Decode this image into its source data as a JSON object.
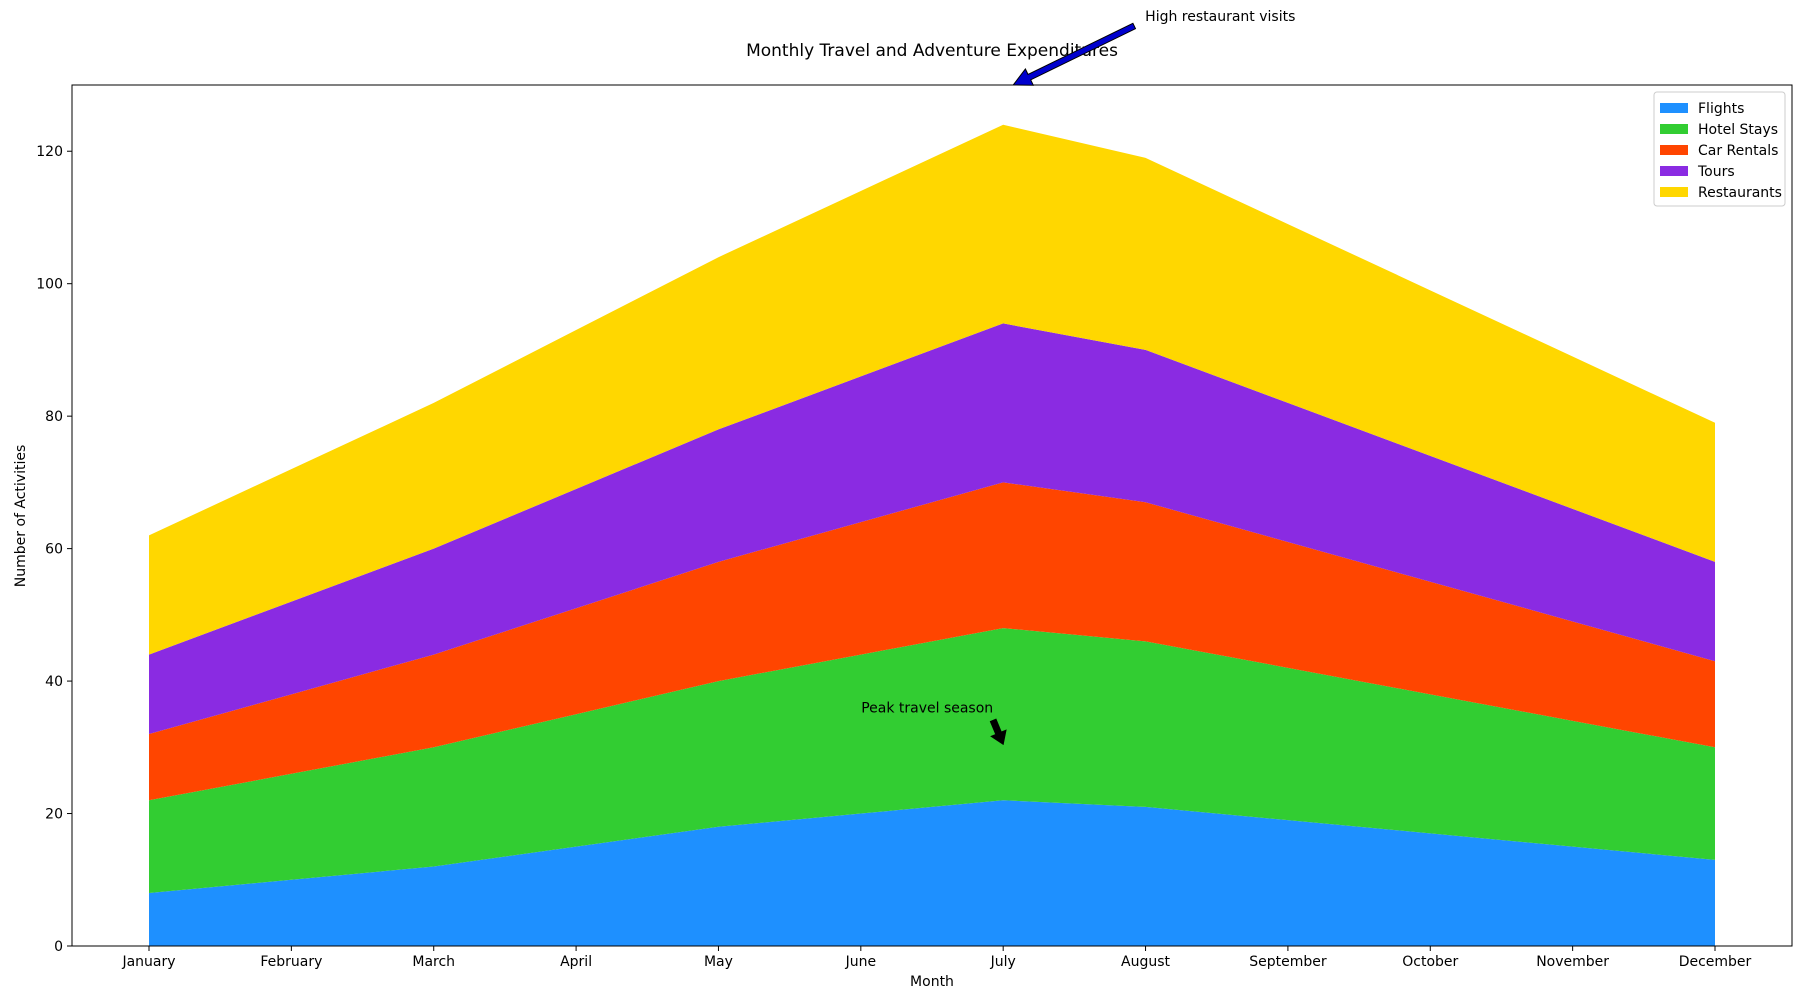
{
  "chart_data": {
    "type": "area",
    "stacked": true,
    "title": "Monthly Travel and Adventure Expenditures",
    "xlabel": "Month",
    "ylabel": "Number of Activities",
    "ylim": [
      0,
      130
    ],
    "yticks": [
      0,
      20,
      40,
      60,
      80,
      100,
      120
    ],
    "categories": [
      "January",
      "February",
      "March",
      "April",
      "May",
      "June",
      "July",
      "August",
      "September",
      "October",
      "November",
      "December"
    ],
    "series": [
      {
        "name": "Flights",
        "color": "#1E90FF",
        "values": [
          8,
          10,
          12,
          15,
          18,
          20,
          22,
          21,
          19,
          17,
          15,
          13
        ]
      },
      {
        "name": "Hotel Stays",
        "color": "#32CD32",
        "values": [
          14,
          16,
          18,
          20,
          22,
          24,
          26,
          25,
          23,
          21,
          19,
          17
        ]
      },
      {
        "name": "Car Rentals",
        "color": "#FF4500",
        "values": [
          10,
          12,
          14,
          16,
          18,
          20,
          22,
          21,
          19,
          17,
          15,
          13
        ]
      },
      {
        "name": "Tours",
        "color": "#8A2BE2",
        "values": [
          12,
          14,
          16,
          18,
          20,
          22,
          24,
          23,
          21,
          19,
          17,
          15
        ]
      },
      {
        "name": "Restaurants",
        "color": "#FFD700",
        "values": [
          18,
          20,
          22,
          24,
          26,
          28,
          30,
          29,
          27,
          25,
          23,
          21
        ]
      }
    ],
    "grid": false,
    "legend_position": "top-right",
    "annotations": [
      {
        "text": "Peak travel season",
        "x": "July",
        "y": 30,
        "arrow_color": "#000000"
      },
      {
        "text": "High restaurant visits",
        "x": "July",
        "y": 130,
        "arrow_color": "#0000CD"
      }
    ]
  }
}
